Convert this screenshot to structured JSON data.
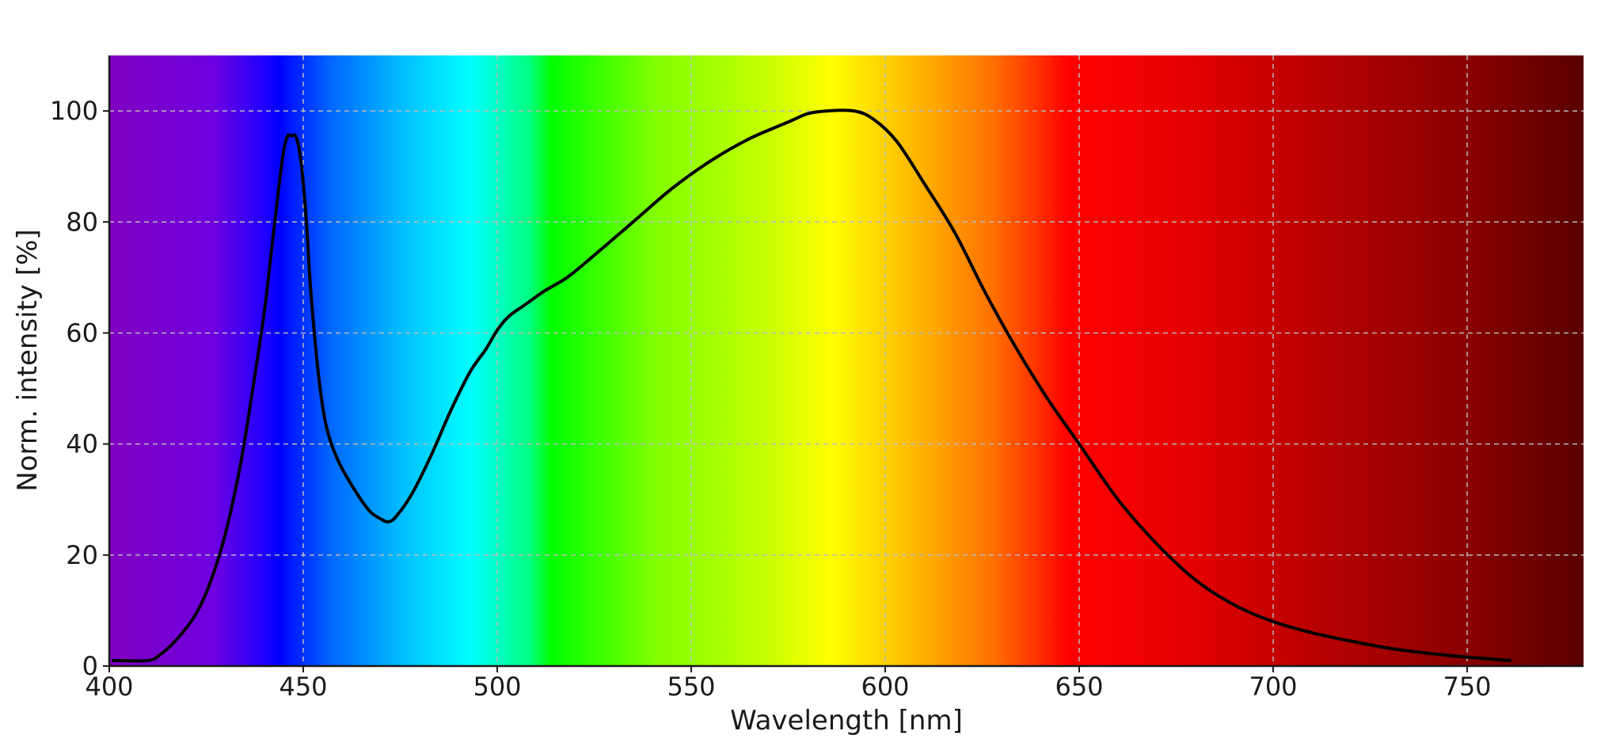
{
  "chart_data": {
    "type": "line",
    "title": "",
    "xlabel": "Wavelength [nm]",
    "ylabel": "Norm. intensity [%]",
    "xlim": [
      400,
      780
    ],
    "ylim": [
      0,
      110
    ],
    "x_ticks": [
      400,
      450,
      500,
      550,
      600,
      650,
      700,
      750
    ],
    "y_ticks": [
      0,
      20,
      40,
      60,
      80,
      100
    ],
    "grid": true,
    "legend": "none",
    "background": "visible spectrum color gradient",
    "series": [
      {
        "color": "#000000",
        "x": [
          401,
          410,
          413,
          417,
          422,
          426,
          430,
          434,
          437,
          440,
          442,
          444,
          445,
          446,
          447,
          448,
          449,
          450,
          451,
          452,
          454,
          456,
          459,
          463,
          467,
          470,
          472,
          474,
          478,
          483,
          488,
          493,
          497,
          500,
          503,
          507,
          512,
          518,
          525,
          535,
          545,
          555,
          565,
          575,
          580,
          585,
          592,
          597,
          603,
          610,
          618,
          626,
          634,
          642,
          650,
          660,
          670,
          680,
          690,
          700,
          710,
          720,
          730,
          740,
          750,
          761
        ],
        "values": [
          1,
          1,
          2,
          4.5,
          9,
          15,
          24,
          37,
          50,
          64,
          76,
          88,
          93,
          95.5,
          95.5,
          95.5,
          93,
          87,
          78,
          67,
          52,
          43,
          37,
          32,
          28,
          26.5,
          26,
          27,
          31,
          38,
          46,
          53,
          57,
          60.5,
          63,
          65,
          67.5,
          70,
          74,
          80,
          86,
          91,
          95,
          98,
          99.5,
          100,
          100,
          98.5,
          94.5,
          87,
          78,
          67,
          57,
          48,
          40,
          30,
          22,
          15.5,
          11,
          8,
          6,
          4.5,
          3.2,
          2.3,
          1.6,
          1
        ]
      }
    ]
  }
}
